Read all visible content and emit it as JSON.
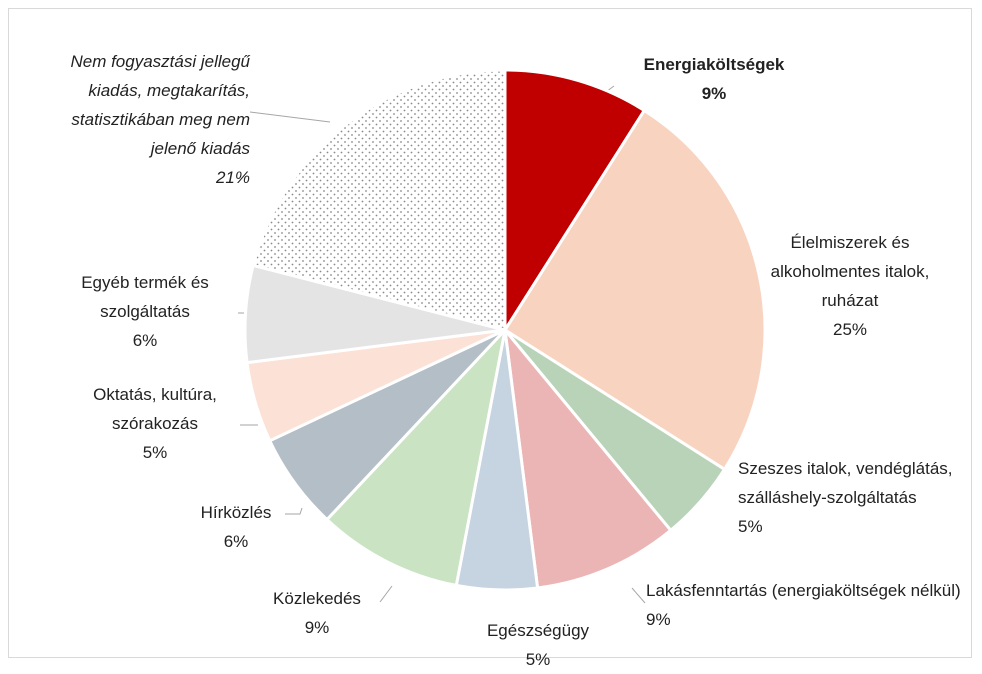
{
  "chart_data": {
    "type": "pie",
    "categories": [
      "Energiaköltségek",
      "Élelmiszerek és alkoholmentes italok, ruházat",
      "Szeszes italok, vendéglátás, szálláshely-szolgáltatás",
      "Lakásfenntartás (energiaköltségek nélkül)",
      "Egészségügy",
      "Közlekedés",
      "Hírközlés",
      "Oktatás, kultúra, szórakozás",
      "Egyéb termék és szolgáltatás",
      "Nem fogyasztási jellegű kiadás, megtakarítás, statisztikában meg nem jelenő kiadás"
    ],
    "values": [
      9,
      25,
      5,
      9,
      5,
      9,
      6,
      5,
      6,
      21
    ],
    "value_labels": [
      "9%",
      "25%",
      "5%",
      "9%",
      "5%",
      "9%",
      "6%",
      "5%",
      "6%",
      "21%"
    ],
    "colors": [
      "#c00000",
      "#f8d3c0",
      "#b9d3b9",
      "#ebb5b5",
      "#c6d3e1",
      "#c9e3c3",
      "#b4bec6",
      "#fbe1d6",
      "#e4e4e4",
      "dotted"
    ]
  }
}
